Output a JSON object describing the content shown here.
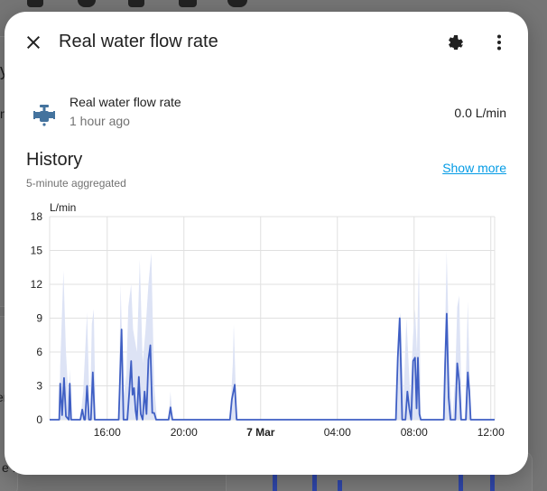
{
  "dialog": {
    "title": "Real water flow rate",
    "close_icon": "close-icon",
    "settings_icon": "gear-icon",
    "more_icon": "more-vert-icon"
  },
  "entity": {
    "name": "Real water flow rate",
    "last_changed": "1 hour ago",
    "state": "0.0 L/min",
    "icon": "water-pump-icon",
    "icon_color": "#44739e"
  },
  "history": {
    "title": "History",
    "subtitle": "5-minute aggregated",
    "show_more": "Show more"
  },
  "background": {
    "fragments": [
      "y",
      "n",
      "er",
      "e L"
    ]
  },
  "chart_data": {
    "type": "line",
    "ylabel": "L/min",
    "ylim": [
      0,
      18
    ],
    "yticks": [
      0,
      3,
      6,
      9,
      12,
      15,
      18
    ],
    "x_tick_labels": [
      "16:00",
      "20:00",
      "7 Mar",
      "04:00",
      "08:00",
      "12:00"
    ],
    "x_tick_bold": [
      false,
      false,
      true,
      false,
      false,
      false
    ],
    "xlim_hours": [
      13.0,
      36.2
    ],
    "x_ticks_hours": [
      16,
      20,
      24,
      28,
      32,
      36
    ],
    "series": [
      {
        "color": "#3f5fc4",
        "band_color": "#dde3f5",
        "points": [
          [
            13.0,
            0
          ],
          [
            13.5,
            0
          ],
          [
            13.55,
            3.2
          ],
          [
            13.65,
            0.4
          ],
          [
            13.75,
            3.7
          ],
          [
            13.85,
            0.3
          ],
          [
            14.0,
            0
          ],
          [
            14.05,
            3.2
          ],
          [
            14.12,
            0
          ],
          [
            14.6,
            0
          ],
          [
            14.7,
            0.9
          ],
          [
            14.8,
            0
          ],
          [
            14.85,
            0
          ],
          [
            14.95,
            3.0
          ],
          [
            15.05,
            0
          ],
          [
            15.15,
            0
          ],
          [
            15.25,
            4.2
          ],
          [
            15.35,
            0
          ],
          [
            16.6,
            0
          ],
          [
            16.75,
            8.0
          ],
          [
            16.85,
            0
          ],
          [
            17.05,
            0
          ],
          [
            17.15,
            2.4
          ],
          [
            17.25,
            5.2
          ],
          [
            17.32,
            2.2
          ],
          [
            17.4,
            2.8
          ],
          [
            17.48,
            0.8
          ],
          [
            17.55,
            0
          ],
          [
            17.65,
            3.8
          ],
          [
            17.75,
            0.5
          ],
          [
            17.85,
            0
          ],
          [
            17.95,
            2.5
          ],
          [
            18.05,
            0.5
          ],
          [
            18.15,
            5.3
          ],
          [
            18.25,
            6.6
          ],
          [
            18.35,
            0.6
          ],
          [
            18.45,
            0.6
          ],
          [
            18.55,
            0
          ],
          [
            19.2,
            0
          ],
          [
            19.3,
            1.1
          ],
          [
            19.4,
            0
          ],
          [
            22.4,
            0
          ],
          [
            22.5,
            1.8
          ],
          [
            22.65,
            3.1
          ],
          [
            22.75,
            0
          ],
          [
            31.05,
            0
          ],
          [
            31.15,
            5.5
          ],
          [
            31.25,
            9.0
          ],
          [
            31.38,
            0
          ],
          [
            31.55,
            0
          ],
          [
            31.65,
            2.5
          ],
          [
            31.75,
            1.0
          ],
          [
            31.85,
            0
          ],
          [
            31.95,
            5.2
          ],
          [
            32.05,
            5.5
          ],
          [
            32.13,
            1.0
          ],
          [
            32.2,
            5.5
          ],
          [
            32.28,
            0.5
          ],
          [
            32.35,
            0
          ],
          [
            33.55,
            0
          ],
          [
            33.62,
            5.0
          ],
          [
            33.7,
            9.4
          ],
          [
            33.8,
            2.0
          ],
          [
            33.9,
            0
          ],
          [
            34.15,
            0
          ],
          [
            34.25,
            5.0
          ],
          [
            34.35,
            3.4
          ],
          [
            34.45,
            0
          ],
          [
            34.7,
            0
          ],
          [
            34.8,
            4.2
          ],
          [
            34.88,
            2.5
          ],
          [
            34.95,
            0
          ],
          [
            36.2,
            0
          ]
        ],
        "band_upper": [
          [
            13.0,
            0
          ],
          [
            13.5,
            0
          ],
          [
            13.55,
            4.8
          ],
          [
            13.72,
            13.2
          ],
          [
            13.85,
            6.0
          ],
          [
            14.0,
            1.5
          ],
          [
            14.05,
            4.5
          ],
          [
            14.15,
            0
          ],
          [
            14.6,
            0
          ],
          [
            14.75,
            2.5
          ],
          [
            14.95,
            9.5
          ],
          [
            15.1,
            0
          ],
          [
            15.2,
            8.5
          ],
          [
            15.3,
            9.8
          ],
          [
            15.4,
            0
          ],
          [
            16.6,
            0
          ],
          [
            16.7,
            12.0
          ],
          [
            16.85,
            2.0
          ],
          [
            17.0,
            4.0
          ],
          [
            17.1,
            10.0
          ],
          [
            17.25,
            12.0
          ],
          [
            17.35,
            8.0
          ],
          [
            17.55,
            6.0
          ],
          [
            17.7,
            14.2
          ],
          [
            17.85,
            5.0
          ],
          [
            18.0,
            8.0
          ],
          [
            18.15,
            12.0
          ],
          [
            18.3,
            14.8
          ],
          [
            18.45,
            3.0
          ],
          [
            18.6,
            0
          ],
          [
            19.2,
            0
          ],
          [
            19.3,
            2.5
          ],
          [
            19.4,
            0
          ],
          [
            22.4,
            0
          ],
          [
            22.55,
            5.0
          ],
          [
            22.6,
            8.5
          ],
          [
            22.75,
            0
          ],
          [
            31.05,
            0
          ],
          [
            31.2,
            8.0
          ],
          [
            31.3,
            9.5
          ],
          [
            31.45,
            2.0
          ],
          [
            31.6,
            9.0
          ],
          [
            31.8,
            2.0
          ],
          [
            31.95,
            7.5
          ],
          [
            32.05,
            9.8
          ],
          [
            32.15,
            6.0
          ],
          [
            32.25,
            14.5
          ],
          [
            32.35,
            0
          ],
          [
            33.5,
            0
          ],
          [
            33.62,
            8.0
          ],
          [
            33.7,
            15.0
          ],
          [
            33.85,
            4.0
          ],
          [
            34.0,
            0
          ],
          [
            34.15,
            4.0
          ],
          [
            34.25,
            10.0
          ],
          [
            34.35,
            11.0
          ],
          [
            34.5,
            0
          ],
          [
            34.65,
            0
          ],
          [
            34.8,
            10.5
          ],
          [
            34.95,
            0
          ],
          [
            36.2,
            0
          ]
        ]
      }
    ]
  }
}
